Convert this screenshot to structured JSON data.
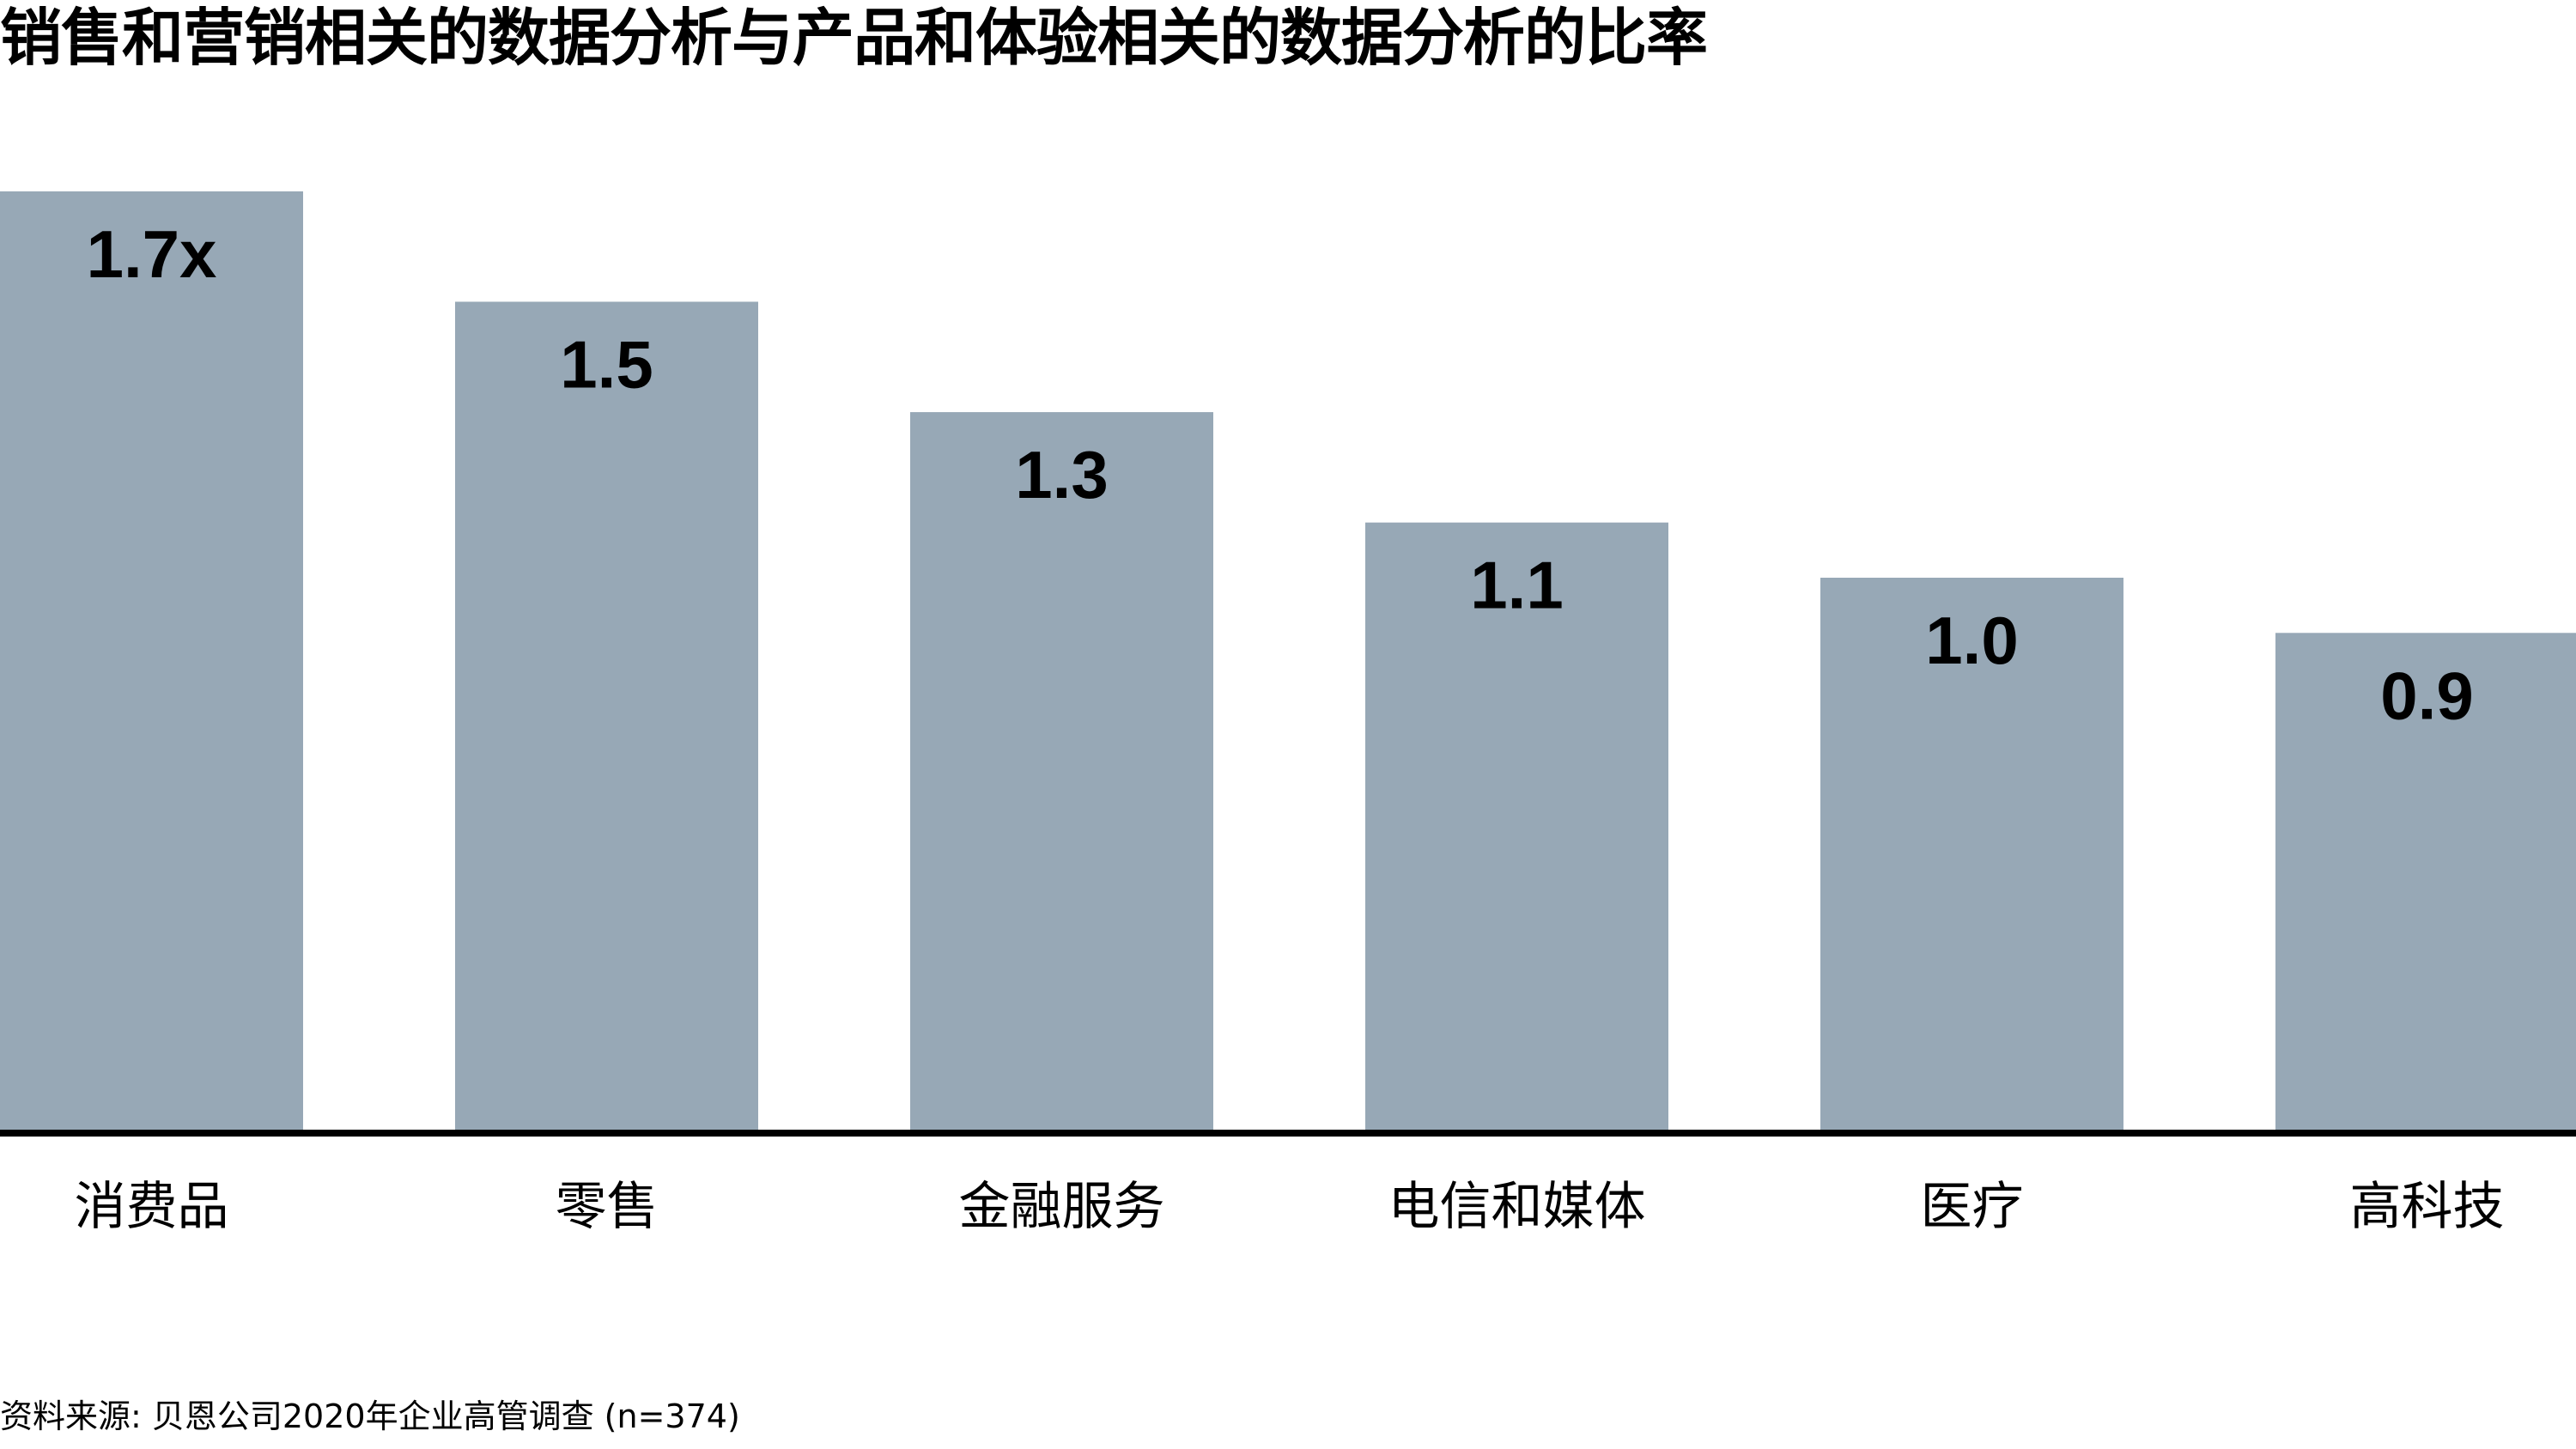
{
  "title": "销售和营销相关的数据分析与产品和体验相关的数据分析的比率",
  "source": "资料来源: 贝恩公司2020年企业高管调查 (n=374)",
  "colors": {
    "bar": "#97a8b6",
    "axis": "#000000",
    "text": "#000000"
  },
  "chart_data": {
    "type": "bar",
    "title": "销售和营销相关的数据分析与产品和体验相关的数据分析的比率",
    "categories": [
      "消费品",
      "零售",
      "金融服务",
      "电信和媒体",
      "医疗",
      "高科技"
    ],
    "values": [
      1.7,
      1.5,
      1.3,
      1.1,
      1.0,
      0.9
    ],
    "value_labels": [
      "1.7x",
      "1.5",
      "1.3",
      "1.1",
      "1.0",
      "0.9"
    ],
    "xlabel": "",
    "ylabel": "",
    "ylim": [
      0,
      1.9
    ],
    "grid": false,
    "legend": "none"
  }
}
